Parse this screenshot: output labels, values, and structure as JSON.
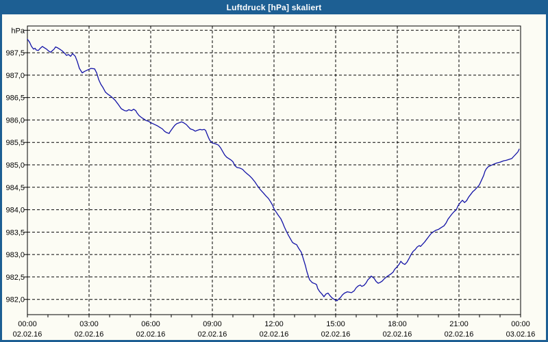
{
  "window": {
    "title": "Luftdruck [hPa] skaliert"
  },
  "colors": {
    "titlebar": "#1D5F93",
    "window_border": "#1D5F93",
    "background": "#FCFCF4",
    "line": "#1212A6",
    "grid": "#000000",
    "text": "#000000",
    "title_text": "#FFFFFF"
  },
  "chart_data": {
    "type": "line",
    "title": "Luftdruck [hPa] skaliert",
    "unit_label": "hPa",
    "grid": "dashed",
    "legend": "none",
    "y_axis": {
      "top_gridline": 988.0,
      "bottom_gridline": 982.0,
      "step": 0.5,
      "decimal_separator": ",",
      "labels": [
        {
          "value": 987.5,
          "label": "987,5"
        },
        {
          "value": 987.0,
          "label": "987,0"
        },
        {
          "value": 986.5,
          "label": "986,5"
        },
        {
          "value": 986.0,
          "label": "986,0"
        },
        {
          "value": 985.5,
          "label": "985,5"
        },
        {
          "value": 985.0,
          "label": "985,0"
        },
        {
          "value": 984.5,
          "label": "984,5"
        },
        {
          "value": 984.0,
          "label": "984,0"
        },
        {
          "value": 983.5,
          "label": "983,5"
        },
        {
          "value": 983.0,
          "label": "983,0"
        },
        {
          "value": 982.5,
          "label": "982,5"
        },
        {
          "value": 982.0,
          "label": "982,0"
        }
      ]
    },
    "x_axis": {
      "hours_span": 24,
      "minor_tick_hours": 1,
      "major_ticks": [
        {
          "hour": 0,
          "time": "00:00",
          "date": "02.02.16"
        },
        {
          "hour": 3,
          "time": "03:00",
          "date": "02.02.16"
        },
        {
          "hour": 6,
          "time": "06:00",
          "date": "02.02.16"
        },
        {
          "hour": 9,
          "time": "09:00",
          "date": "02.02.16"
        },
        {
          "hour": 12,
          "time": "12:00",
          "date": "02.02.16"
        },
        {
          "hour": 15,
          "time": "15:00",
          "date": "02.02.16"
        },
        {
          "hour": 18,
          "time": "18:00",
          "date": "02.02.16"
        },
        {
          "hour": 21,
          "time": "21:00",
          "date": "02.02.16"
        },
        {
          "hour": 24,
          "time": "00:00",
          "date": "03.02.16"
        }
      ]
    },
    "series": [
      {
        "name": "Luftdruck",
        "color": "#1212A6",
        "points_hour_hpa": [
          [
            0.0,
            987.8
          ],
          [
            0.1,
            987.74
          ],
          [
            0.2,
            987.64
          ],
          [
            0.3,
            987.58
          ],
          [
            0.37,
            987.6
          ],
          [
            0.43,
            987.56
          ],
          [
            0.53,
            987.55
          ],
          [
            0.63,
            987.6
          ],
          [
            0.73,
            987.64
          ],
          [
            0.83,
            987.61
          ],
          [
            0.93,
            987.58
          ],
          [
            1.03,
            987.54
          ],
          [
            1.13,
            987.51
          ],
          [
            1.2,
            987.54
          ],
          [
            1.3,
            987.58
          ],
          [
            1.37,
            987.63
          ],
          [
            1.47,
            987.61
          ],
          [
            1.57,
            987.58
          ],
          [
            1.7,
            987.54
          ],
          [
            1.83,
            987.48
          ],
          [
            1.9,
            987.44
          ],
          [
            2.0,
            987.46
          ],
          [
            2.1,
            987.42
          ],
          [
            2.2,
            987.48
          ],
          [
            2.33,
            987.42
          ],
          [
            2.43,
            987.3
          ],
          [
            2.53,
            987.15
          ],
          [
            2.67,
            987.05
          ],
          [
            2.77,
            987.08
          ],
          [
            2.9,
            987.11
          ],
          [
            3.0,
            987.13
          ],
          [
            3.1,
            987.15
          ],
          [
            3.27,
            987.14
          ],
          [
            3.37,
            987.05
          ],
          [
            3.47,
            986.9
          ],
          [
            3.57,
            986.8
          ],
          [
            3.67,
            986.73
          ],
          [
            3.8,
            986.62
          ],
          [
            3.93,
            986.57
          ],
          [
            4.0,
            986.55
          ],
          [
            4.13,
            986.5
          ],
          [
            4.27,
            986.44
          ],
          [
            4.4,
            986.36
          ],
          [
            4.57,
            986.25
          ],
          [
            4.73,
            986.21
          ],
          [
            4.83,
            986.2
          ],
          [
            4.93,
            986.23
          ],
          [
            5.07,
            986.21
          ],
          [
            5.17,
            986.24
          ],
          [
            5.27,
            986.21
          ],
          [
            5.33,
            986.16
          ],
          [
            5.43,
            986.1
          ],
          [
            5.57,
            986.05
          ],
          [
            5.67,
            986.02
          ],
          [
            5.77,
            985.99
          ],
          [
            5.9,
            985.97
          ],
          [
            6.0,
            985.94
          ],
          [
            6.1,
            985.92
          ],
          [
            6.23,
            985.89
          ],
          [
            6.33,
            985.87
          ],
          [
            6.43,
            985.84
          ],
          [
            6.57,
            985.8
          ],
          [
            6.67,
            985.75
          ],
          [
            6.77,
            985.72
          ],
          [
            6.9,
            985.7
          ],
          [
            6.93,
            985.73
          ],
          [
            7.07,
            985.82
          ],
          [
            7.17,
            985.88
          ],
          [
            7.27,
            985.92
          ],
          [
            7.4,
            985.94
          ],
          [
            7.5,
            985.96
          ],
          [
            7.6,
            985.94
          ],
          [
            7.73,
            985.9
          ],
          [
            7.83,
            985.85
          ],
          [
            7.93,
            985.8
          ],
          [
            8.07,
            985.78
          ],
          [
            8.17,
            985.75
          ],
          [
            8.27,
            985.77
          ],
          [
            8.4,
            985.79
          ],
          [
            8.5,
            985.78
          ],
          [
            8.6,
            985.79
          ],
          [
            8.67,
            985.77
          ],
          [
            8.73,
            985.7
          ],
          [
            8.8,
            985.62
          ],
          [
            8.87,
            985.55
          ],
          [
            8.93,
            985.52
          ],
          [
            9.0,
            985.49
          ],
          [
            9.07,
            985.48
          ],
          [
            9.2,
            985.46
          ],
          [
            9.3,
            985.44
          ],
          [
            9.4,
            985.38
          ],
          [
            9.5,
            985.3
          ],
          [
            9.6,
            985.22
          ],
          [
            9.7,
            985.17
          ],
          [
            9.8,
            985.14
          ],
          [
            9.9,
            985.11
          ],
          [
            10.0,
            985.07
          ],
          [
            10.1,
            984.98
          ],
          [
            10.2,
            984.94
          ],
          [
            10.33,
            984.93
          ],
          [
            10.47,
            984.9
          ],
          [
            10.57,
            984.85
          ],
          [
            10.67,
            984.81
          ],
          [
            10.8,
            984.76
          ],
          [
            10.93,
            984.7
          ],
          [
            11.07,
            984.62
          ],
          [
            11.2,
            984.53
          ],
          [
            11.33,
            984.45
          ],
          [
            11.47,
            984.38
          ],
          [
            11.6,
            984.31
          ],
          [
            11.73,
            984.25
          ],
          [
            11.83,
            984.18
          ],
          [
            11.93,
            984.1
          ],
          [
            12.0,
            984.02
          ],
          [
            12.1,
            983.95
          ],
          [
            12.2,
            983.88
          ],
          [
            12.33,
            983.8
          ],
          [
            12.43,
            983.7
          ],
          [
            12.5,
            983.62
          ],
          [
            12.6,
            983.52
          ],
          [
            12.7,
            983.43
          ],
          [
            12.8,
            983.35
          ],
          [
            12.9,
            983.27
          ],
          [
            13.0,
            983.24
          ],
          [
            13.1,
            983.22
          ],
          [
            13.2,
            983.14
          ],
          [
            13.33,
            983.05
          ],
          [
            13.43,
            982.9
          ],
          [
            13.53,
            982.75
          ],
          [
            13.6,
            982.62
          ],
          [
            13.67,
            982.52
          ],
          [
            13.73,
            982.44
          ],
          [
            13.87,
            982.37
          ],
          [
            14.0,
            982.35
          ],
          [
            14.07,
            982.33
          ],
          [
            14.13,
            982.24
          ],
          [
            14.23,
            982.17
          ],
          [
            14.33,
            982.12
          ],
          [
            14.43,
            982.06
          ],
          [
            14.53,
            982.12
          ],
          [
            14.63,
            982.14
          ],
          [
            14.73,
            982.08
          ],
          [
            14.83,
            982.03
          ],
          [
            14.93,
            982.0
          ],
          [
            15.0,
            981.98
          ],
          [
            15.07,
            981.97
          ],
          [
            15.13,
            982.0
          ],
          [
            15.23,
            982.04
          ],
          [
            15.33,
            982.1
          ],
          [
            15.43,
            982.14
          ],
          [
            15.57,
            982.17
          ],
          [
            15.67,
            982.16
          ],
          [
            15.77,
            982.15
          ],
          [
            15.9,
            982.19
          ],
          [
            16.0,
            982.26
          ],
          [
            16.1,
            982.3
          ],
          [
            16.2,
            982.32
          ],
          [
            16.27,
            982.29
          ],
          [
            16.37,
            982.31
          ],
          [
            16.47,
            982.36
          ],
          [
            16.57,
            982.44
          ],
          [
            16.67,
            982.48
          ],
          [
            16.73,
            982.52
          ],
          [
            16.87,
            982.47
          ],
          [
            16.97,
            982.4
          ],
          [
            17.07,
            982.36
          ],
          [
            17.17,
            982.38
          ],
          [
            17.27,
            982.41
          ],
          [
            17.37,
            982.46
          ],
          [
            17.5,
            982.51
          ],
          [
            17.6,
            982.54
          ],
          [
            17.7,
            982.57
          ],
          [
            17.8,
            982.61
          ],
          [
            17.87,
            982.67
          ],
          [
            18.0,
            982.73
          ],
          [
            18.1,
            982.79
          ],
          [
            18.17,
            982.85
          ],
          [
            18.27,
            982.8
          ],
          [
            18.37,
            982.78
          ],
          [
            18.47,
            982.83
          ],
          [
            18.57,
            982.91
          ],
          [
            18.67,
            983.0
          ],
          [
            18.77,
            983.07
          ],
          [
            18.87,
            983.11
          ],
          [
            18.97,
            983.17
          ],
          [
            19.07,
            983.2
          ],
          [
            19.13,
            983.18
          ],
          [
            19.23,
            983.23
          ],
          [
            19.33,
            983.28
          ],
          [
            19.43,
            983.34
          ],
          [
            19.53,
            983.4
          ],
          [
            19.63,
            983.46
          ],
          [
            19.73,
            983.5
          ],
          [
            19.87,
            983.54
          ],
          [
            20.0,
            983.56
          ],
          [
            20.13,
            983.6
          ],
          [
            20.27,
            983.64
          ],
          [
            20.37,
            983.7
          ],
          [
            20.47,
            983.79
          ],
          [
            20.57,
            983.85
          ],
          [
            20.67,
            983.91
          ],
          [
            20.77,
            983.96
          ],
          [
            20.87,
            984.0
          ],
          [
            20.97,
            984.1
          ],
          [
            21.07,
            984.16
          ],
          [
            21.17,
            984.21
          ],
          [
            21.27,
            984.16
          ],
          [
            21.37,
            984.2
          ],
          [
            21.47,
            984.28
          ],
          [
            21.57,
            984.34
          ],
          [
            21.67,
            984.4
          ],
          [
            21.77,
            984.44
          ],
          [
            21.87,
            984.49
          ],
          [
            21.97,
            984.54
          ],
          [
            22.0,
            984.56
          ],
          [
            22.1,
            984.66
          ],
          [
            22.2,
            984.76
          ],
          [
            22.27,
            984.86
          ],
          [
            22.33,
            984.91
          ],
          [
            22.43,
            984.96
          ],
          [
            22.57,
            984.99
          ],
          [
            22.67,
            985.01
          ],
          [
            22.83,
            985.04
          ],
          [
            23.0,
            985.06
          ],
          [
            23.17,
            985.09
          ],
          [
            23.3,
            985.1
          ],
          [
            23.43,
            985.12
          ],
          [
            23.57,
            985.14
          ],
          [
            23.67,
            985.19
          ],
          [
            23.77,
            985.24
          ],
          [
            23.87,
            985.29
          ],
          [
            23.93,
            985.35
          ]
        ]
      }
    ]
  }
}
